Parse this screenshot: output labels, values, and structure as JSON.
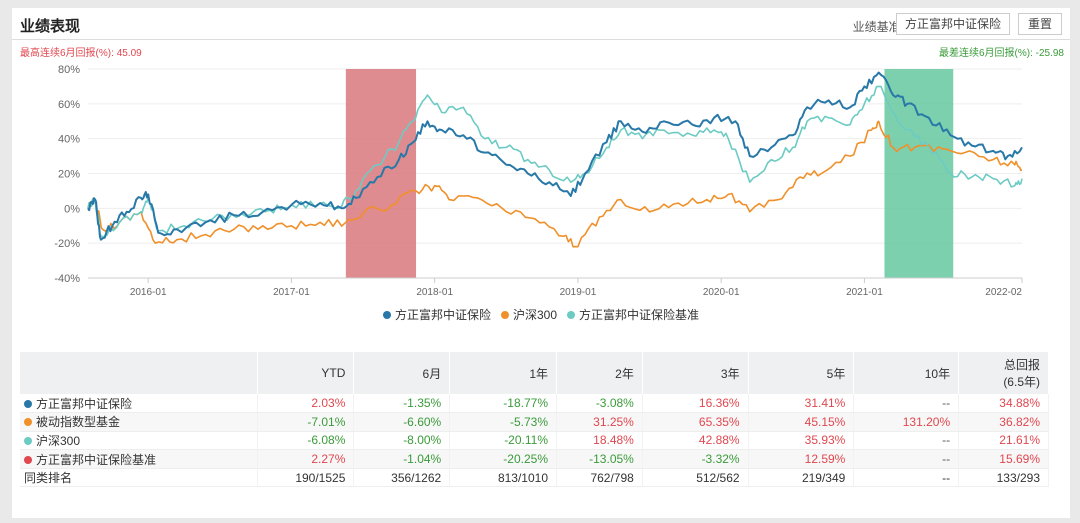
{
  "header": {
    "title": "业绩表现",
    "benchmark_label": "业绩基准:",
    "benchmark_value": "方正富邦中证保险",
    "reset": "重置"
  },
  "stats": {
    "max_label": "最高连续6月回报(%):",
    "max_value": "45.09",
    "min_label": "最差连续6月回报(%):",
    "min_value": "-25.98"
  },
  "colors": {
    "fund": "#2878a8",
    "hs300": "#f0902a",
    "bench": "#6ccbc3",
    "red_band": "#d9787c",
    "green_band": "#5cc49a"
  },
  "chart_data": {
    "type": "line",
    "ylim": [
      -40,
      80
    ],
    "yticks": [
      "80%",
      "60%",
      "40%",
      "20%",
      "0%",
      "-20%",
      "-40%"
    ],
    "ytick_values": [
      80,
      60,
      40,
      20,
      0,
      -20,
      -40
    ],
    "xlim": [
      2015.58,
      2022.1
    ],
    "xticks": [
      "2016-01",
      "2017-01",
      "2018-01",
      "2019-01",
      "2020-01",
      "2021-01",
      "2022-02"
    ],
    "xtick_values": [
      2016.0,
      2017.0,
      2018.0,
      2019.0,
      2020.0,
      2021.0,
      2022.1
    ],
    "bands": [
      {
        "from": 2017.38,
        "to": 2017.87,
        "type": "max"
      },
      {
        "from": 2021.14,
        "to": 2021.62,
        "type": "min"
      }
    ],
    "series": [
      {
        "name": "方正富邦中证保险",
        "key": "fund",
        "points": [
          [
            2015.58,
            0
          ],
          [
            2015.63,
            5
          ],
          [
            2015.67,
            -18
          ],
          [
            2015.75,
            -10
          ],
          [
            2015.85,
            -2
          ],
          [
            2015.95,
            6
          ],
          [
            2016.0,
            8
          ],
          [
            2016.07,
            -14
          ],
          [
            2016.2,
            -12
          ],
          [
            2016.4,
            -8
          ],
          [
            2016.6,
            -4
          ],
          [
            2016.8,
            -2
          ],
          [
            2017.0,
            2
          ],
          [
            2017.2,
            3
          ],
          [
            2017.35,
            0
          ],
          [
            2017.45,
            6
          ],
          [
            2017.6,
            18
          ],
          [
            2017.75,
            28
          ],
          [
            2017.85,
            38
          ],
          [
            2017.95,
            50
          ],
          [
            2018.05,
            45
          ],
          [
            2018.2,
            42
          ],
          [
            2018.35,
            32
          ],
          [
            2018.5,
            25
          ],
          [
            2018.65,
            20
          ],
          [
            2018.8,
            15
          ],
          [
            2018.95,
            7
          ],
          [
            2019.05,
            20
          ],
          [
            2019.2,
            38
          ],
          [
            2019.3,
            50
          ],
          [
            2019.45,
            44
          ],
          [
            2019.6,
            50
          ],
          [
            2019.8,
            48
          ],
          [
            2019.95,
            52
          ],
          [
            2020.1,
            50
          ],
          [
            2020.2,
            30
          ],
          [
            2020.35,
            35
          ],
          [
            2020.5,
            42
          ],
          [
            2020.6,
            58
          ],
          [
            2020.75,
            62
          ],
          [
            2020.9,
            58
          ],
          [
            2021.0,
            70
          ],
          [
            2021.1,
            78
          ],
          [
            2021.2,
            65
          ],
          [
            2021.3,
            60
          ],
          [
            2021.45,
            52
          ],
          [
            2021.6,
            42
          ],
          [
            2021.75,
            36
          ],
          [
            2021.9,
            33
          ],
          [
            2022.0,
            30
          ],
          [
            2022.1,
            35
          ]
        ]
      },
      {
        "name": "沪深300",
        "key": "hs300",
        "points": [
          [
            2015.58,
            0
          ],
          [
            2015.63,
            5
          ],
          [
            2015.68,
            -12
          ],
          [
            2015.8,
            -8
          ],
          [
            2015.95,
            -2
          ],
          [
            2016.05,
            -20
          ],
          [
            2016.2,
            -18
          ],
          [
            2016.4,
            -15
          ],
          [
            2016.6,
            -12
          ],
          [
            2016.8,
            -10
          ],
          [
            2017.0,
            -10
          ],
          [
            2017.2,
            -8
          ],
          [
            2017.38,
            -8
          ],
          [
            2017.5,
            -3
          ],
          [
            2017.7,
            2
          ],
          [
            2017.87,
            10
          ],
          [
            2018.0,
            13
          ],
          [
            2018.1,
            5
          ],
          [
            2018.3,
            6
          ],
          [
            2018.5,
            -2
          ],
          [
            2018.7,
            -6
          ],
          [
            2018.9,
            -16
          ],
          [
            2019.0,
            -22
          ],
          [
            2019.15,
            -5
          ],
          [
            2019.3,
            5
          ],
          [
            2019.5,
            -2
          ],
          [
            2019.7,
            3
          ],
          [
            2019.9,
            5
          ],
          [
            2020.05,
            8
          ],
          [
            2020.2,
            -2
          ],
          [
            2020.4,
            5
          ],
          [
            2020.55,
            18
          ],
          [
            2020.7,
            20
          ],
          [
            2020.9,
            30
          ],
          [
            2021.05,
            45
          ],
          [
            2021.1,
            50
          ],
          [
            2021.2,
            35
          ],
          [
            2021.35,
            35
          ],
          [
            2021.55,
            34
          ],
          [
            2021.7,
            32
          ],
          [
            2021.9,
            28
          ],
          [
            2022.05,
            25
          ],
          [
            2022.1,
            22
          ]
        ]
      },
      {
        "name": "方正富邦中证保险基准",
        "key": "bench",
        "points": [
          [
            2015.58,
            0
          ],
          [
            2015.63,
            5
          ],
          [
            2015.67,
            -16
          ],
          [
            2015.8,
            -8
          ],
          [
            2015.95,
            -2
          ],
          [
            2016.0,
            6
          ],
          [
            2016.07,
            -13
          ],
          [
            2016.25,
            -10
          ],
          [
            2016.45,
            -6
          ],
          [
            2016.65,
            -3
          ],
          [
            2016.85,
            -1
          ],
          [
            2017.0,
            2
          ],
          [
            2017.2,
            3
          ],
          [
            2017.35,
            1
          ],
          [
            2017.45,
            10
          ],
          [
            2017.6,
            25
          ],
          [
            2017.75,
            38
          ],
          [
            2017.85,
            50
          ],
          [
            2017.95,
            65
          ],
          [
            2018.05,
            55
          ],
          [
            2018.2,
            58
          ],
          [
            2018.35,
            40
          ],
          [
            2018.5,
            35
          ],
          [
            2018.65,
            28
          ],
          [
            2018.8,
            22
          ],
          [
            2018.95,
            15
          ],
          [
            2019.05,
            20
          ],
          [
            2019.2,
            35
          ],
          [
            2019.3,
            45
          ],
          [
            2019.45,
            40
          ],
          [
            2019.6,
            45
          ],
          [
            2019.8,
            42
          ],
          [
            2019.95,
            45
          ],
          [
            2020.05,
            40
          ],
          [
            2020.2,
            15
          ],
          [
            2020.35,
            28
          ],
          [
            2020.5,
            35
          ],
          [
            2020.6,
            50
          ],
          [
            2020.75,
            52
          ],
          [
            2020.9,
            48
          ],
          [
            2021.0,
            60
          ],
          [
            2021.1,
            70
          ],
          [
            2021.2,
            55
          ],
          [
            2021.3,
            45
          ],
          [
            2021.45,
            35
          ],
          [
            2021.6,
            20
          ],
          [
            2021.75,
            18
          ],
          [
            2021.9,
            17
          ],
          [
            2022.05,
            13
          ],
          [
            2022.1,
            17
          ]
        ]
      }
    ]
  },
  "table": {
    "headers": [
      "",
      "YTD",
      "6月",
      "1年",
      "2年",
      "3年",
      "5年",
      "10年",
      "总回报\n(6.5年)"
    ],
    "header_total_1": "总回报",
    "header_total_2": "(6.5年)",
    "rows": [
      {
        "name": "方正富邦中证保险",
        "color": "#2878a8",
        "values": [
          "2.03%",
          "-1.35%",
          "-18.77%",
          "-3.08%",
          "16.36%",
          "31.41%",
          "--",
          "34.88%"
        ]
      },
      {
        "name": "被动指数型基金",
        "color": "#f0902a",
        "values": [
          "-7.01%",
          "-6.60%",
          "-5.73%",
          "31.25%",
          "65.35%",
          "45.15%",
          "131.20%",
          "36.82%"
        ]
      },
      {
        "name": "沪深300",
        "color": "#6ccbc3",
        "values": [
          "-6.08%",
          "-8.00%",
          "-20.11%",
          "18.48%",
          "42.88%",
          "35.93%",
          "--",
          "21.61%"
        ]
      },
      {
        "name": "方正富邦中证保险基准",
        "color": "#e0474f",
        "values": [
          "2.27%",
          "-1.04%",
          "-20.25%",
          "-13.05%",
          "-3.32%",
          "12.59%",
          "--",
          "15.69%"
        ]
      }
    ],
    "rank": {
      "name": "同类排名",
      "values": [
        "190/1525",
        "356/1262",
        "813/1010",
        "762/798",
        "512/562",
        "219/349",
        "--",
        "133/293"
      ]
    }
  }
}
